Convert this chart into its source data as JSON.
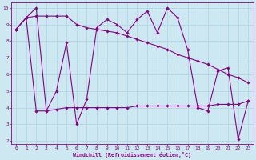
{
  "xlabel": "Windchill (Refroidissement éolien,°C)",
  "background_color": "#cde8f0",
  "grid_color": "#b0d8e8",
  "line_color": "#880088",
  "xlim": [
    -0.5,
    23.5
  ],
  "ylim": [
    1.8,
    10.3
  ],
  "yticks": [
    2,
    3,
    4,
    5,
    6,
    7,
    8,
    9,
    10
  ],
  "xticks": [
    0,
    1,
    2,
    3,
    4,
    5,
    6,
    7,
    8,
    9,
    10,
    11,
    12,
    13,
    14,
    15,
    16,
    17,
    18,
    19,
    20,
    21,
    22,
    23
  ],
  "series": [
    [
      8.7,
      9.4,
      10.0,
      3.8,
      5.0,
      7.9,
      3.0,
      4.5,
      8.8,
      9.3,
      9.0,
      8.5,
      9.3,
      9.8,
      8.5,
      10.0,
      9.4,
      7.5,
      4.0,
      3.8,
      6.2,
      6.4,
      2.1,
      4.4
    ],
    [
      8.7,
      9.4,
      9.5,
      9.5,
      9.5,
      9.5,
      9.0,
      8.8,
      8.7,
      8.6,
      8.5,
      8.3,
      8.1,
      7.9,
      7.7,
      7.5,
      7.2,
      7.0,
      6.8,
      6.6,
      6.3,
      6.0,
      5.8,
      5.5
    ],
    [
      8.7,
      9.4,
      3.8,
      3.8,
      3.9,
      4.0,
      4.0,
      4.0,
      4.0,
      4.0,
      4.0,
      4.0,
      4.1,
      4.1,
      4.1,
      4.1,
      4.1,
      4.1,
      4.1,
      4.1,
      4.2,
      4.2,
      4.2,
      4.4
    ]
  ]
}
